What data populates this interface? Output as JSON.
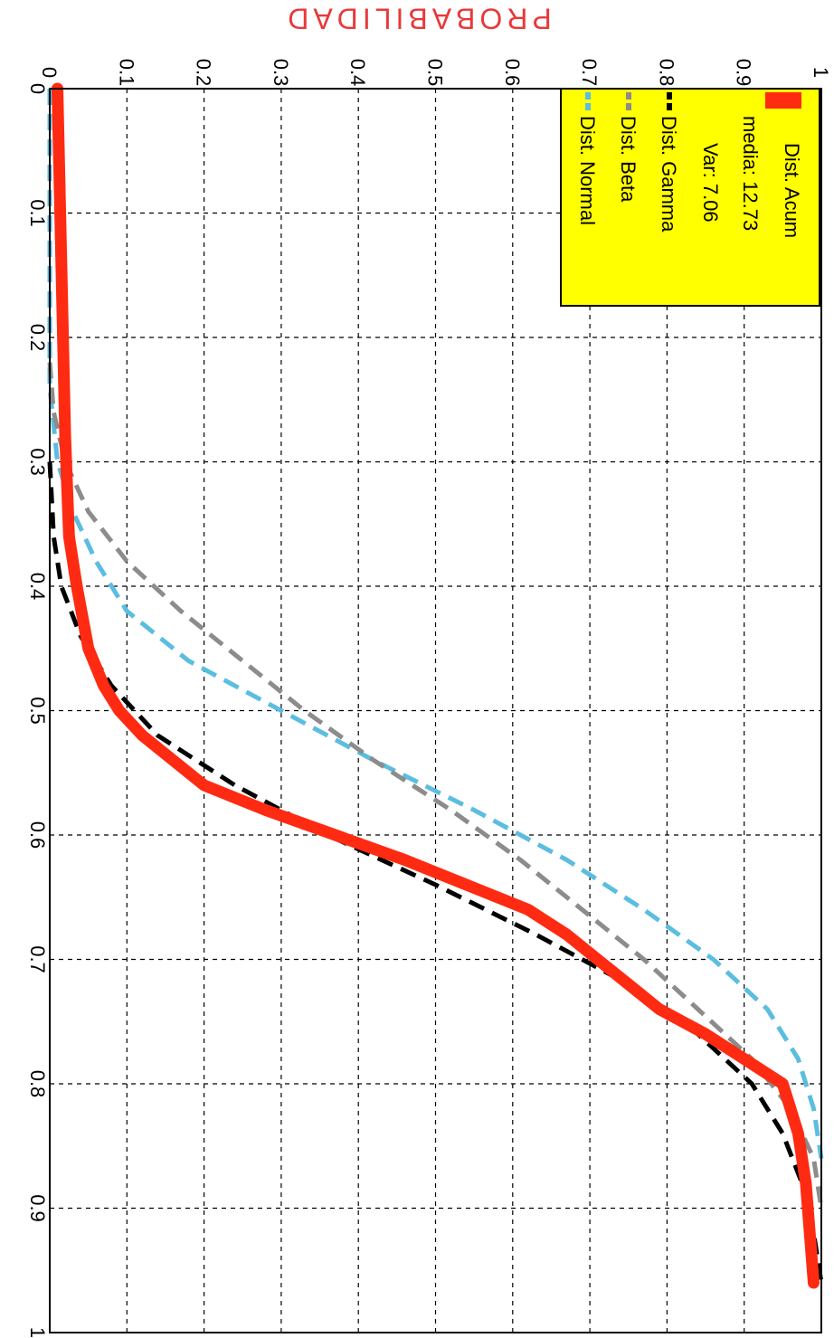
{
  "chart_data": {
    "type": "line",
    "orientation": "rotated 90 degrees clockwise",
    "ylabel": "PROBABILIDAD",
    "xlabel": "",
    "xlim": [
      0,
      1
    ],
    "ylim": [
      0,
      1
    ],
    "x_ticks": [
      "0",
      "0.1",
      "0.2",
      "0.3",
      "0.4",
      "0.5",
      "0.6",
      "0.7",
      "0.8",
      "0.9",
      "1"
    ],
    "y_ticks": [
      "0",
      "0.1",
      "0.2",
      "0.3",
      "0.4",
      "0.5",
      "0.6",
      "0.7",
      "0.8",
      "0.9",
      "1"
    ],
    "grid": true,
    "legend_position": "top-right",
    "legend_bg": "#ffff00",
    "legend": [
      "Dist. Acum",
      "media: 12.73",
      "Var: 7.06",
      "Dist. Gamma",
      "Dist. Beta",
      "Dist. Normal"
    ],
    "series": [
      {
        "name": "Dist. Acum",
        "color": "#ff2a12",
        "style": "solid",
        "points": [
          [
            0,
            0.01
          ],
          [
            0.28,
            0.02
          ],
          [
            0.36,
            0.025
          ],
          [
            0.4,
            0.035
          ],
          [
            0.45,
            0.05
          ],
          [
            0.48,
            0.07
          ],
          [
            0.5,
            0.09
          ],
          [
            0.52,
            0.12
          ],
          [
            0.54,
            0.16
          ],
          [
            0.56,
            0.2
          ],
          [
            0.58,
            0.28
          ],
          [
            0.6,
            0.37
          ],
          [
            0.62,
            0.46
          ],
          [
            0.64,
            0.54
          ],
          [
            0.66,
            0.62
          ],
          [
            0.68,
            0.67
          ],
          [
            0.7,
            0.71
          ],
          [
            0.72,
            0.75
          ],
          [
            0.74,
            0.79
          ],
          [
            0.76,
            0.85
          ],
          [
            0.78,
            0.9
          ],
          [
            0.8,
            0.95
          ],
          [
            0.82,
            0.96
          ],
          [
            0.84,
            0.97
          ],
          [
            0.88,
            0.98
          ],
          [
            0.92,
            0.985
          ],
          [
            0.96,
            0.99
          ]
        ]
      },
      {
        "name": "Dist. Gamma",
        "color": "#000000",
        "style": "dashed",
        "points": [
          [
            0.3,
            0.0
          ],
          [
            0.36,
            0.005
          ],
          [
            0.4,
            0.015
          ],
          [
            0.44,
            0.04
          ],
          [
            0.48,
            0.08
          ],
          [
            0.52,
            0.14
          ],
          [
            0.56,
            0.24
          ],
          [
            0.6,
            0.36
          ],
          [
            0.64,
            0.5
          ],
          [
            0.68,
            0.63
          ],
          [
            0.72,
            0.75
          ],
          [
            0.76,
            0.84
          ],
          [
            0.8,
            0.91
          ],
          [
            0.84,
            0.95
          ],
          [
            0.88,
            0.975
          ],
          [
            0.92,
            0.99
          ],
          [
            0.96,
            1.0
          ]
        ]
      },
      {
        "name": "Dist. Beta",
        "color": "#8c8c8c",
        "style": "dashed",
        "points": [
          [
            0.22,
            0.0
          ],
          [
            0.26,
            0.005
          ],
          [
            0.3,
            0.02
          ],
          [
            0.34,
            0.05
          ],
          [
            0.38,
            0.1
          ],
          [
            0.42,
            0.17
          ],
          [
            0.46,
            0.25
          ],
          [
            0.5,
            0.33
          ],
          [
            0.54,
            0.42
          ],
          [
            0.58,
            0.52
          ],
          [
            0.62,
            0.61
          ],
          [
            0.66,
            0.69
          ],
          [
            0.7,
            0.77
          ],
          [
            0.74,
            0.84
          ],
          [
            0.78,
            0.91
          ],
          [
            0.82,
            0.96
          ],
          [
            0.86,
            0.99
          ],
          [
            0.9,
            1.0
          ]
        ]
      },
      {
        "name": "Dist. Normal",
        "color": "#5bbde0",
        "style": "dashed",
        "points": [
          [
            0,
            0.0
          ],
          [
            0.24,
            0.0
          ],
          [
            0.3,
            0.01
          ],
          [
            0.34,
            0.03
          ],
          [
            0.38,
            0.06
          ],
          [
            0.42,
            0.1
          ],
          [
            0.46,
            0.18
          ],
          [
            0.5,
            0.3
          ],
          [
            0.54,
            0.42
          ],
          [
            0.58,
            0.55
          ],
          [
            0.62,
            0.67
          ],
          [
            0.66,
            0.77
          ],
          [
            0.7,
            0.86
          ],
          [
            0.74,
            0.93
          ],
          [
            0.78,
            0.97
          ],
          [
            0.82,
            0.99
          ],
          [
            0.86,
            1.0
          ]
        ]
      }
    ]
  }
}
